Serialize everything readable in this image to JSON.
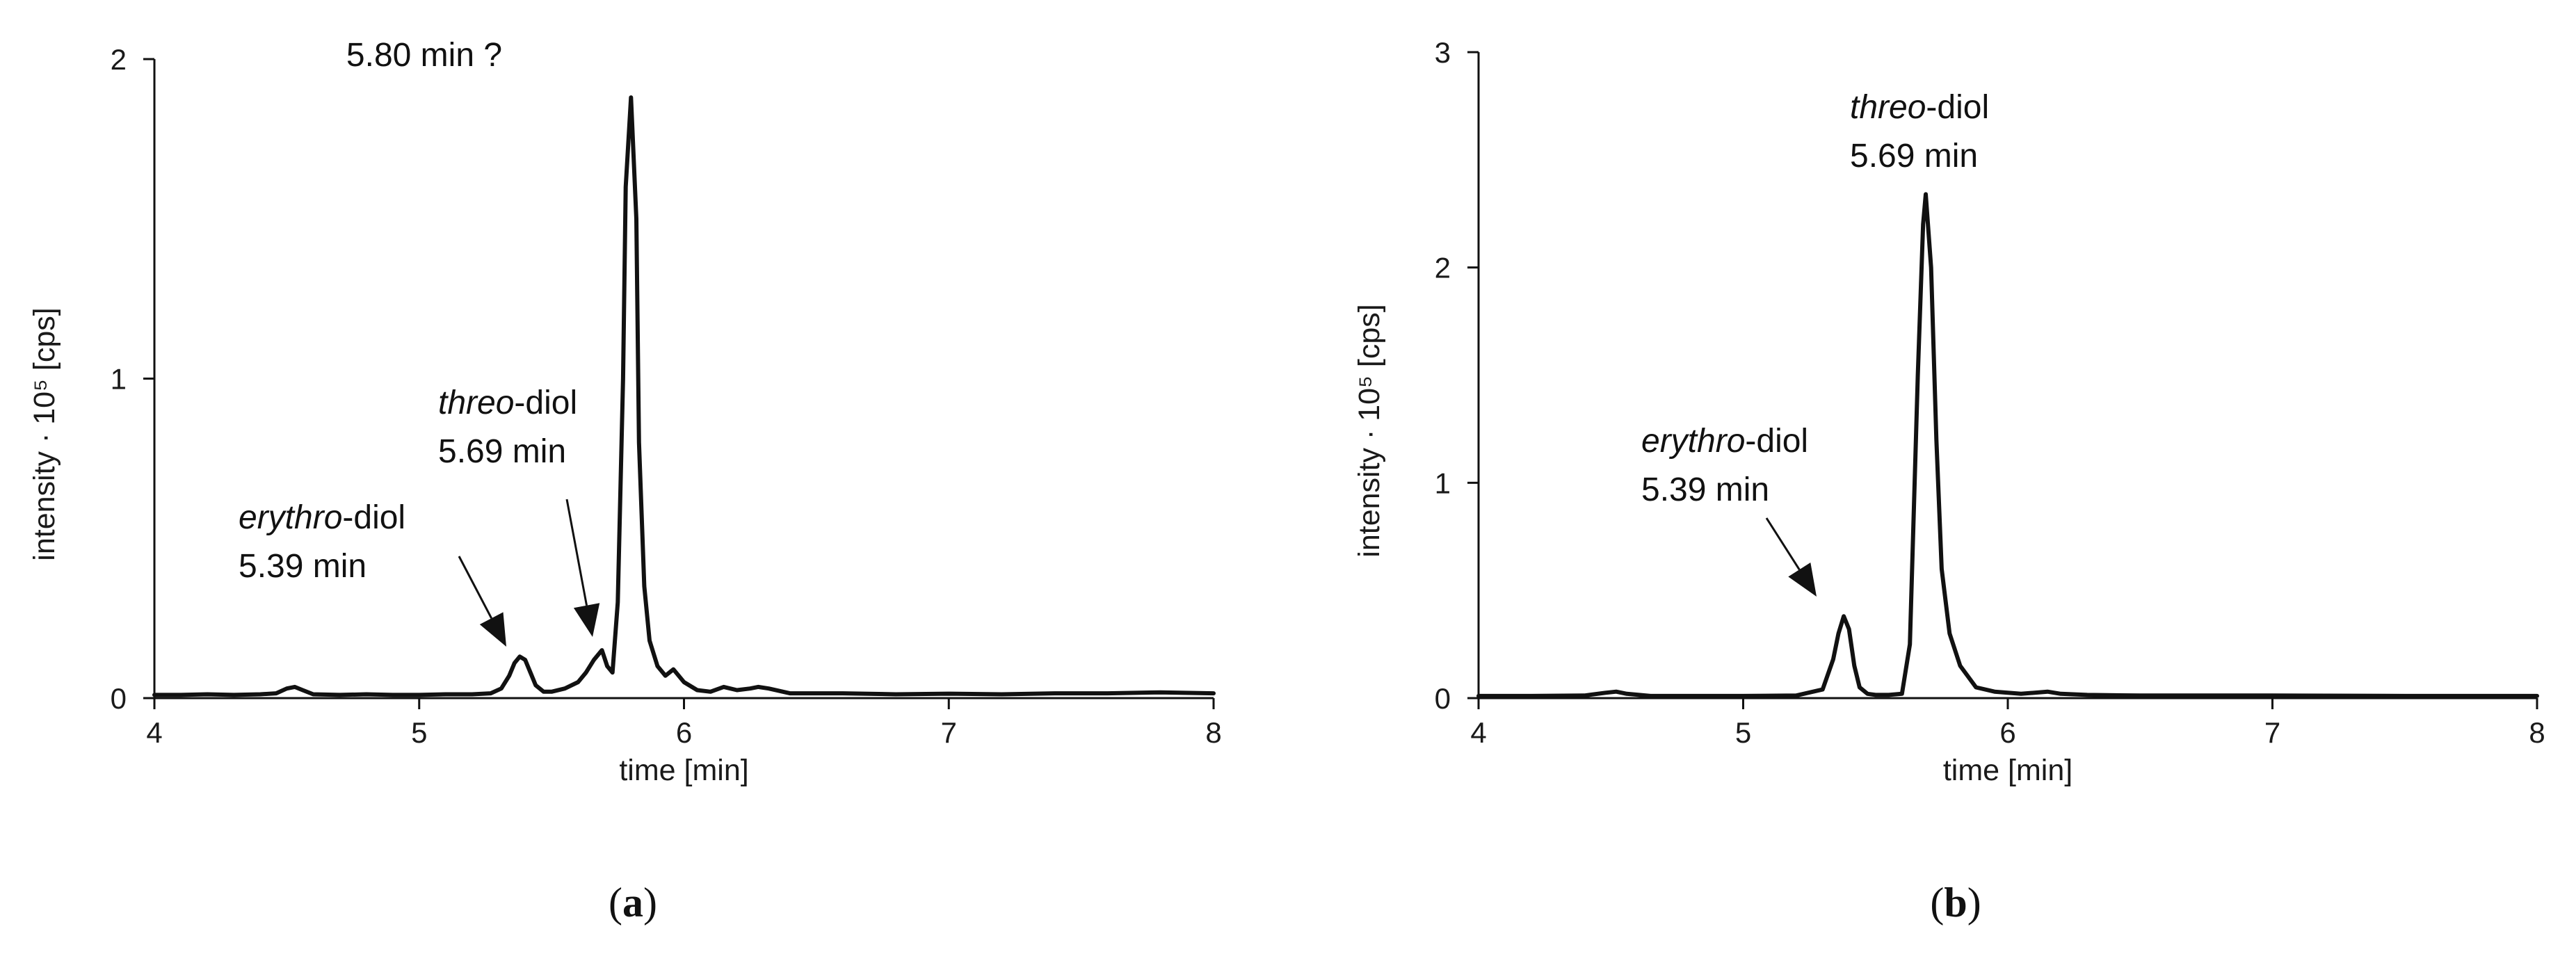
{
  "chart_data": [
    {
      "type": "line",
      "panel_label": "a",
      "xlabel": "time [min]",
      "ylabel": "intensity · 10⁵ [cps]",
      "xlim": [
        4,
        8
      ],
      "ylim": [
        0,
        2
      ],
      "xticks": [
        4,
        5,
        6,
        7,
        8
      ],
      "yticks": [
        0,
        1,
        2
      ],
      "grid": false,
      "series": [
        {
          "x": [
            4.0,
            4.1,
            4.2,
            4.3,
            4.4,
            4.46,
            4.5,
            4.53,
            4.56,
            4.6,
            4.7,
            4.8,
            4.9,
            5.0,
            5.1,
            5.2,
            5.27,
            5.31,
            5.34,
            5.36,
            5.38,
            5.4,
            5.42,
            5.44,
            5.47,
            5.5,
            5.55,
            5.6,
            5.63,
            5.66,
            5.69,
            5.71,
            5.73,
            5.75,
            5.77,
            5.78,
            5.8,
            5.82,
            5.83,
            5.85,
            5.87,
            5.9,
            5.93,
            5.96,
            6.0,
            6.05,
            6.1,
            6.15,
            6.2,
            6.25,
            6.28,
            6.32,
            6.4,
            6.6,
            6.8,
            7.0,
            7.2,
            7.4,
            7.6,
            7.8,
            8.0
          ],
          "y": [
            0.01,
            0.01,
            0.012,
            0.01,
            0.012,
            0.015,
            0.03,
            0.035,
            0.025,
            0.012,
            0.01,
            0.012,
            0.01,
            0.01,
            0.012,
            0.012,
            0.015,
            0.03,
            0.07,
            0.11,
            0.13,
            0.12,
            0.08,
            0.04,
            0.02,
            0.02,
            0.03,
            0.05,
            0.08,
            0.12,
            0.15,
            0.1,
            0.08,
            0.3,
            1.0,
            1.6,
            1.88,
            1.5,
            0.8,
            0.35,
            0.18,
            0.1,
            0.07,
            0.09,
            0.05,
            0.025,
            0.02,
            0.035,
            0.025,
            0.03,
            0.035,
            0.03,
            0.015,
            0.015,
            0.012,
            0.014,
            0.012,
            0.015,
            0.015,
            0.018,
            0.015
          ]
        }
      ],
      "annotations": [
        {
          "label": "5.80 min ?",
          "time": 5.8
        },
        {
          "label_italic": "threo",
          "label_rest": "-diol",
          "label_line2": "5.69 min",
          "time": 5.69
        },
        {
          "label_italic": "erythro",
          "label_rest": "-diol",
          "label_line2": "5.39 min",
          "time": 5.39
        }
      ]
    },
    {
      "type": "line",
      "panel_label": "b",
      "xlabel": "time [min]",
      "ylabel": "intensity · 10⁵ [cps]",
      "xlim": [
        4,
        8
      ],
      "ylim": [
        0,
        3
      ],
      "xticks": [
        4,
        5,
        6,
        7,
        8
      ],
      "yticks": [
        0,
        1,
        2,
        3
      ],
      "grid": false,
      "series": [
        {
          "x": [
            4.0,
            4.2,
            4.4,
            4.48,
            4.52,
            4.56,
            4.65,
            4.8,
            5.0,
            5.2,
            5.3,
            5.34,
            5.36,
            5.38,
            5.4,
            5.42,
            5.44,
            5.47,
            5.5,
            5.55,
            5.6,
            5.63,
            5.66,
            5.68,
            5.69,
            5.71,
            5.73,
            5.75,
            5.78,
            5.82,
            5.88,
            5.95,
            6.05,
            6.15,
            6.2,
            6.3,
            6.5,
            7.0,
            7.5,
            8.0
          ],
          "y": [
            0.01,
            0.01,
            0.012,
            0.025,
            0.03,
            0.02,
            0.01,
            0.01,
            0.01,
            0.012,
            0.04,
            0.18,
            0.3,
            0.38,
            0.32,
            0.15,
            0.05,
            0.02,
            0.015,
            0.015,
            0.02,
            0.25,
            1.5,
            2.2,
            2.34,
            2.0,
            1.2,
            0.6,
            0.3,
            0.15,
            0.05,
            0.03,
            0.02,
            0.03,
            0.02,
            0.015,
            0.012,
            0.012,
            0.01,
            0.01
          ]
        }
      ],
      "annotations": [
        {
          "label_italic": "threo",
          "label_rest": "-diol",
          "label_line2": "5.69 min",
          "time": 5.69
        },
        {
          "label_italic": "erythro",
          "label_rest": "-diol",
          "label_line2": "5.39 min",
          "time": 5.39
        }
      ]
    }
  ]
}
